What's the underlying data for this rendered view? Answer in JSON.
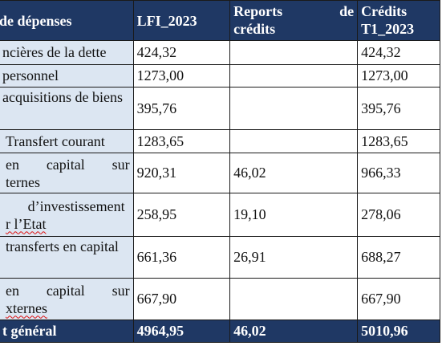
{
  "headers": {
    "col0": "de dépenses",
    "col1": "LFI_2023",
    "col2_line1": "Reports",
    "col2_line1b": "de",
    "col2_line2": "crédits",
    "col3_line1": "Crédits",
    "col3_line2": "T1_2023"
  },
  "rows": [
    {
      "label": [
        "ncières de la dette"
      ],
      "lfi": "424,32",
      "reports": "",
      "credits": "424,32"
    },
    {
      "label": [
        "personnel"
      ],
      "lfi": "1273,00",
      "reports": "",
      "credits": "1273,00"
    },
    {
      "label": [
        "acquisitions de biens"
      ],
      "lfi": "395,76",
      "reports": "",
      "credits": "395,76"
    },
    {
      "label": [
        "Transfert courant"
      ],
      "lfi": "1283,65",
      "reports": "",
      "credits": "1283,65"
    },
    {
      "label": [
        "en capital sur",
        "ternes"
      ],
      "lfi": "920,31",
      "reports": "46,02",
      "credits": "966,33"
    },
    {
      "label": [
        "d’investissement",
        "r l’Etat"
      ],
      "lfi": "258,95",
      "reports": "19,10",
      "credits": "278,06"
    },
    {
      "label": [
        "transferts en capital"
      ],
      "lfi": "661,36",
      "reports": "26,91",
      "credits": "688,27"
    },
    {
      "label": [
        "en capital sur",
        "xternes"
      ],
      "lfi": "667,90",
      "reports": "",
      "credits": "667,90"
    }
  ],
  "total": {
    "label": "t général",
    "lfi": "4964,95",
    "reports": "46,02",
    "credits": "5010,96"
  }
}
